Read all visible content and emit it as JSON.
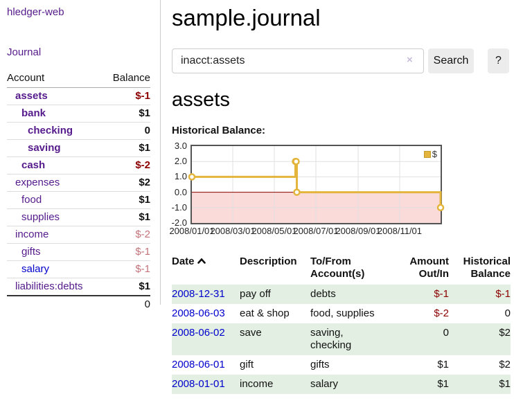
{
  "colors": {
    "link_purple": "#551a8b",
    "link_blue": "#0000cc",
    "negative_red": "#8b0000",
    "muted_negative_rose": "#c4737b",
    "row_green": "#e3efe3",
    "chart_line_gold": "#e3b53d",
    "chart_negative_region_pink": "#fbdada",
    "button_gray": "#ececec"
  },
  "sidebar": {
    "app_title": "hledger-web",
    "journal_link": "Journal",
    "accounts": {
      "col_account": "Account",
      "col_balance": "Balance",
      "rows": [
        {
          "name": "assets",
          "balance": "$-1"
        },
        {
          "name": "bank",
          "balance": "$1"
        },
        {
          "name": "checking",
          "balance": "0"
        },
        {
          "name": "saving",
          "balance": "$1"
        },
        {
          "name": "cash",
          "balance": "$-2"
        },
        {
          "name": "expenses",
          "balance": "$2"
        },
        {
          "name": "food",
          "balance": "$1"
        },
        {
          "name": "supplies",
          "balance": "$1"
        },
        {
          "name": "income",
          "balance": "$-2"
        },
        {
          "name": "gifts",
          "balance": "$-1"
        },
        {
          "name": "salary",
          "balance": "$-1"
        },
        {
          "name": "liabilities:debts",
          "balance": "$1"
        }
      ],
      "total": "0"
    }
  },
  "main": {
    "title": "sample.journal",
    "search": {
      "value": "inacct:assets",
      "clear_icon": "×",
      "search_button": "Search",
      "help_button": "?"
    },
    "account_heading": "assets",
    "chart_label": "Historical Balance:",
    "register": {
      "headers": {
        "date": "Date",
        "description": "Description",
        "accounts": "To/From Account(s)",
        "amount": "Amount Out/In",
        "balance": "Historical Balance"
      },
      "rows": [
        {
          "date": "2008-12-31",
          "description": "pay off",
          "accounts": "debts",
          "amount": "$-1",
          "balance": "$-1"
        },
        {
          "date": "2008-06-03",
          "description": "eat & shop",
          "accounts": "food, supplies",
          "amount": "$-2",
          "balance": "0"
        },
        {
          "date": "2008-06-02",
          "description": "save",
          "accounts": "saving, checking",
          "amount": "0",
          "balance": "$2"
        },
        {
          "date": "2008-06-01",
          "description": "gift",
          "accounts": "gifts",
          "amount": "$1",
          "balance": "$2"
        },
        {
          "date": "2008-01-01",
          "description": "income",
          "accounts": "salary",
          "amount": "$1",
          "balance": "$1"
        }
      ]
    }
  },
  "chart_data": {
    "type": "line",
    "step": true,
    "title": "Historical Balance",
    "ylim": [
      -2,
      3
    ],
    "xlim_days": [
      0,
      365
    ],
    "grid": true,
    "legend": {
      "position": "top-right"
    },
    "y_ticks": [
      {
        "label": "3.0",
        "value": 3
      },
      {
        "label": "2.0",
        "value": 2
      },
      {
        "label": "1.0",
        "value": 1
      },
      {
        "label": "0.0",
        "value": 0
      },
      {
        "label": "-1.0",
        "value": -1
      },
      {
        "label": "-2.0",
        "value": -2
      }
    ],
    "x_ticks": [
      {
        "label": "2008/01/01",
        "day": 0
      },
      {
        "label": "2008/03/01",
        "day": 60
      },
      {
        "label": "2008/05/01",
        "day": 121
      },
      {
        "label": "2008/07/01",
        "day": 182
      },
      {
        "label": "2008/09/01",
        "day": 244
      },
      {
        "label": "2008/11/01",
        "day": 305
      }
    ],
    "series": [
      {
        "name": "$",
        "color": "#e3b53d",
        "points": [
          {
            "date": "2008-01-01",
            "day": 0,
            "value": 1
          },
          {
            "date": "2008-06-01",
            "day": 152,
            "value": 2
          },
          {
            "date": "2008-06-02",
            "day": 153,
            "value": 2
          },
          {
            "date": "2008-06-03",
            "day": 154,
            "value": 0
          },
          {
            "date": "2008-12-31",
            "day": 365,
            "value": -1
          }
        ]
      }
    ],
    "negative_region_color": "#fbdada",
    "zero_line_color": "#8b0000"
  }
}
